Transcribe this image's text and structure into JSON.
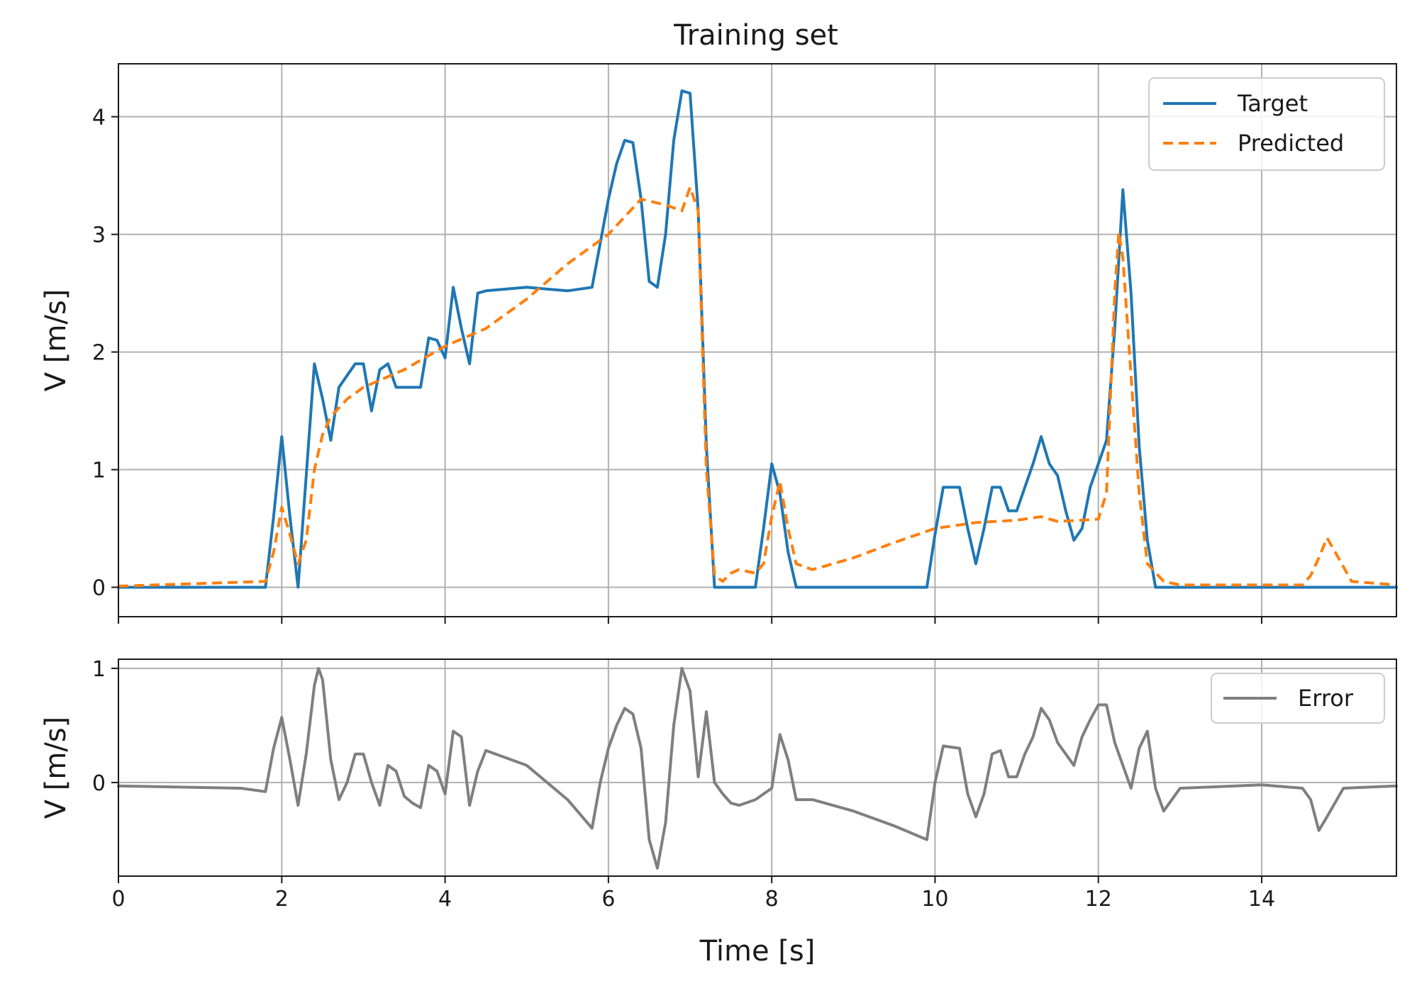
{
  "chart_data": [
    {
      "type": "line",
      "title": "Training set",
      "xlabel": "",
      "ylabel": "V [m/s]",
      "xlim": [
        0,
        15.65
      ],
      "ylim": [
        -0.25,
        4.45
      ],
      "xticks": [
        0,
        2,
        4,
        6,
        8,
        10,
        12,
        14
      ],
      "yticks": [
        0,
        1,
        2,
        3,
        4
      ],
      "grid": true,
      "legend": "top-right",
      "series": [
        {
          "name": "Target",
          "color": "#1f77b4",
          "style": "solid",
          "x": [
            0,
            1.8,
            1.9,
            2.0,
            2.1,
            2.2,
            2.3,
            2.4,
            2.5,
            2.6,
            2.7,
            2.8,
            2.9,
            3.0,
            3.1,
            3.2,
            3.3,
            3.4,
            3.5,
            3.7,
            3.8,
            3.9,
            4.0,
            4.1,
            4.2,
            4.3,
            4.4,
            4.5,
            5.0,
            5.5,
            5.8,
            6.0,
            6.1,
            6.2,
            6.3,
            6.4,
            6.5,
            6.6,
            6.7,
            6.8,
            6.9,
            7.0,
            7.1,
            7.2,
            7.3,
            7.5,
            7.8,
            7.9,
            8.0,
            8.1,
            8.2,
            8.3,
            8.5,
            9.0,
            9.5,
            9.8,
            9.9,
            10.0,
            10.1,
            10.2,
            10.3,
            10.4,
            10.5,
            10.6,
            10.7,
            10.8,
            10.9,
            11.0,
            11.1,
            11.2,
            11.3,
            11.4,
            11.5,
            11.6,
            11.7,
            11.8,
            11.9,
            12.0,
            12.1,
            12.2,
            12.3,
            12.4,
            12.5,
            12.6,
            12.7,
            13.0,
            14.0,
            15.65
          ],
          "y": [
            0,
            0,
            0.6,
            1.28,
            0.6,
            0.0,
            0.95,
            1.9,
            1.6,
            1.25,
            1.7,
            1.8,
            1.9,
            1.9,
            1.5,
            1.85,
            1.9,
            1.7,
            1.7,
            1.7,
            2.12,
            2.1,
            1.95,
            2.55,
            2.2,
            1.9,
            2.5,
            2.52,
            2.55,
            2.52,
            2.55,
            3.3,
            3.6,
            3.8,
            3.78,
            3.3,
            2.6,
            2.55,
            3.0,
            3.8,
            4.22,
            4.2,
            3.2,
            1.2,
            0.0,
            0.0,
            0.0,
            0.5,
            1.05,
            0.8,
            0.3,
            0.0,
            0.0,
            0.0,
            0.0,
            0.0,
            0.0,
            0.45,
            0.85,
            0.85,
            0.85,
            0.5,
            0.2,
            0.5,
            0.85,
            0.85,
            0.65,
            0.65,
            0.85,
            1.05,
            1.28,
            1.05,
            0.95,
            0.65,
            0.4,
            0.5,
            0.85,
            1.05,
            1.25,
            2.2,
            3.38,
            2.5,
            1.2,
            0.4,
            0.0,
            0.0,
            0.0,
            0.0
          ]
        },
        {
          "name": "Predicted",
          "color": "#ff7f0e",
          "style": "dashed",
          "x": [
            0,
            1.8,
            1.9,
            2.0,
            2.1,
            2.2,
            2.3,
            2.4,
            2.5,
            2.6,
            2.8,
            3.0,
            3.5,
            4.0,
            4.5,
            5.0,
            5.5,
            6.0,
            6.4,
            6.7,
            6.9,
            7.0,
            7.1,
            7.2,
            7.3,
            7.4,
            7.5,
            7.6,
            7.8,
            7.9,
            8.0,
            8.1,
            8.2,
            8.3,
            8.5,
            9.0,
            9.5,
            10.0,
            10.5,
            11.0,
            11.3,
            11.5,
            11.8,
            12.0,
            12.1,
            12.2,
            12.25,
            12.3,
            12.4,
            12.5,
            12.6,
            12.8,
            13.0,
            13.5,
            14.0,
            14.5,
            14.6,
            14.7,
            14.8,
            14.9,
            15.1,
            15.65
          ],
          "y": [
            0.01,
            0.05,
            0.3,
            0.68,
            0.45,
            0.2,
            0.4,
            1.0,
            1.3,
            1.45,
            1.6,
            1.7,
            1.85,
            2.05,
            2.2,
            2.45,
            2.75,
            3.0,
            3.3,
            3.25,
            3.2,
            3.4,
            3.2,
            1.0,
            0.1,
            0.05,
            0.12,
            0.15,
            0.12,
            0.2,
            0.6,
            0.9,
            0.5,
            0.2,
            0.15,
            0.25,
            0.38,
            0.5,
            0.55,
            0.57,
            0.6,
            0.56,
            0.57,
            0.58,
            0.8,
            2.5,
            3.02,
            2.8,
            1.8,
            0.8,
            0.2,
            0.05,
            0.02,
            0.02,
            0.02,
            0.02,
            0.1,
            0.25,
            0.42,
            0.3,
            0.05,
            0.02
          ]
        }
      ]
    },
    {
      "type": "line",
      "title": "",
      "xlabel": "Time [s]",
      "ylabel": "V [m/s]",
      "xlim": [
        0,
        15.65
      ],
      "ylim": [
        -0.82,
        1.08
      ],
      "xticks": [
        0,
        2,
        4,
        6,
        8,
        10,
        12,
        14
      ],
      "yticks": [
        0,
        1
      ],
      "grid": true,
      "legend": "top-right",
      "series": [
        {
          "name": "Error",
          "color": "#7f7f7f",
          "style": "solid",
          "x": [
            0,
            1.5,
            1.8,
            1.9,
            2.0,
            2.1,
            2.2,
            2.3,
            2.4,
            2.45,
            2.5,
            2.6,
            2.7,
            2.8,
            2.9,
            3.0,
            3.1,
            3.2,
            3.3,
            3.4,
            3.5,
            3.6,
            3.7,
            3.8,
            3.9,
            4.0,
            4.1,
            4.2,
            4.3,
            4.4,
            4.5,
            5.0,
            5.5,
            5.8,
            5.9,
            6.0,
            6.1,
            6.2,
            6.3,
            6.4,
            6.5,
            6.6,
            6.7,
            6.8,
            6.9,
            7.0,
            7.1,
            7.2,
            7.3,
            7.4,
            7.5,
            7.6,
            7.8,
            8.0,
            8.1,
            8.2,
            8.3,
            8.5,
            9.0,
            9.5,
            9.9,
            10.0,
            10.1,
            10.3,
            10.4,
            10.5,
            10.6,
            10.7,
            10.8,
            10.9,
            11.0,
            11.1,
            11.2,
            11.3,
            11.4,
            11.5,
            11.6,
            11.7,
            11.8,
            11.9,
            12.0,
            12.1,
            12.2,
            12.3,
            12.4,
            12.5,
            12.6,
            12.7,
            12.8,
            13.0,
            14.0,
            14.5,
            14.6,
            14.7,
            14.8,
            15.0,
            15.65
          ],
          "y": [
            -0.03,
            -0.05,
            -0.08,
            0.3,
            0.57,
            0.2,
            -0.2,
            0.25,
            0.85,
            1.0,
            0.9,
            0.2,
            -0.15,
            0.0,
            0.25,
            0.25,
            0.0,
            -0.2,
            0.15,
            0.1,
            -0.12,
            -0.18,
            -0.22,
            0.15,
            0.1,
            -0.1,
            0.45,
            0.4,
            -0.2,
            0.1,
            0.28,
            0.15,
            -0.15,
            -0.4,
            0.0,
            0.3,
            0.5,
            0.65,
            0.6,
            0.3,
            -0.5,
            -0.75,
            -0.35,
            0.5,
            1.0,
            0.8,
            0.05,
            0.62,
            0.0,
            -0.1,
            -0.18,
            -0.2,
            -0.15,
            -0.05,
            0.42,
            0.2,
            -0.15,
            -0.15,
            -0.25,
            -0.38,
            -0.5,
            0.0,
            0.32,
            0.3,
            -0.1,
            -0.3,
            -0.1,
            0.25,
            0.28,
            0.05,
            0.05,
            0.25,
            0.4,
            0.65,
            0.55,
            0.35,
            0.25,
            0.15,
            0.4,
            0.55,
            0.68,
            0.68,
            0.35,
            0.15,
            -0.05,
            0.3,
            0.45,
            -0.05,
            -0.25,
            -0.05,
            -0.02,
            -0.05,
            -0.15,
            -0.42,
            -0.3,
            -0.05,
            -0.03
          ]
        }
      ]
    }
  ]
}
